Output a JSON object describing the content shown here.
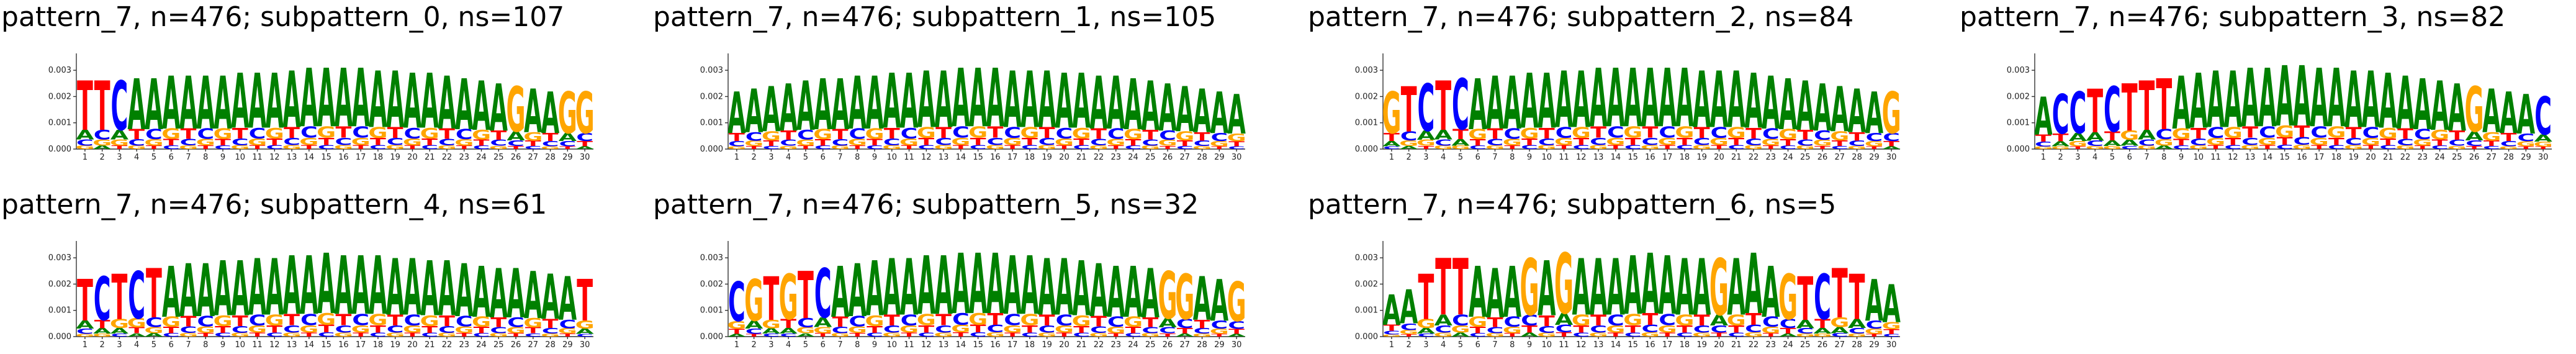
{
  "colors": {
    "A": "#008000",
    "C": "#0000ff",
    "G": "#ffa500",
    "T": "#ff0000"
  },
  "chart_data": [
    {
      "type": "sequence-logo",
      "title": "pattern_7, n=476; subpattern_0, ns=107",
      "yticks": [
        "0.000",
        "0.001",
        "0.002",
        "0.003"
      ],
      "ylim": [
        0,
        0.0035
      ],
      "positions": [
        1,
        2,
        3,
        4,
        5,
        6,
        7,
        8,
        9,
        10,
        11,
        12,
        13,
        14,
        15,
        16,
        17,
        18,
        19,
        20,
        21,
        22,
        23,
        24,
        25,
        26,
        27,
        28,
        29,
        30
      ],
      "consensus": "TTCAAAAAAAAAAAAAAAAAAAAAAGAAGG",
      "heights": [
        0.0026,
        0.0026,
        0.0026,
        0.0027,
        0.0027,
        0.0028,
        0.0028,
        0.0028,
        0.0028,
        0.0029,
        0.0029,
        0.0029,
        0.003,
        0.0031,
        0.0031,
        0.0031,
        0.0031,
        0.003,
        0.003,
        0.0029,
        0.0029,
        0.0028,
        0.0027,
        0.0026,
        0.0025,
        0.0024,
        0.0023,
        0.0022,
        0.0022,
        0.0022
      ]
    },
    {
      "type": "sequence-logo",
      "title": "pattern_7, n=476; subpattern_1, ns=105",
      "yticks": [
        "0.000",
        "0.001",
        "0.002",
        "0.003"
      ],
      "ylim": [
        0,
        0.0035
      ],
      "positions": [
        1,
        2,
        3,
        4,
        5,
        6,
        7,
        8,
        9,
        10,
        11,
        12,
        13,
        14,
        15,
        16,
        17,
        18,
        19,
        20,
        21,
        22,
        23,
        24,
        25,
        26,
        27,
        28,
        29,
        30
      ],
      "consensus": "AAAAAAAAAAAAAAAAAAAAAAAAAAAAAA",
      "heights": [
        0.0022,
        0.0023,
        0.0024,
        0.0025,
        0.0026,
        0.0027,
        0.0027,
        0.0028,
        0.0028,
        0.0029,
        0.0029,
        0.003,
        0.003,
        0.0031,
        0.0031,
        0.0031,
        0.003,
        0.003,
        0.003,
        0.0029,
        0.0029,
        0.0028,
        0.0028,
        0.0027,
        0.0026,
        0.0025,
        0.0024,
        0.0023,
        0.0022,
        0.0021
      ]
    },
    {
      "type": "sequence-logo",
      "title": "pattern_7, n=476; subpattern_2, ns=84",
      "yticks": [
        "0.000",
        "0.001",
        "0.002",
        "0.003"
      ],
      "ylim": [
        0,
        0.0035
      ],
      "positions": [
        1,
        2,
        3,
        4,
        5,
        6,
        7,
        8,
        9,
        10,
        11,
        12,
        13,
        14,
        15,
        16,
        17,
        18,
        19,
        20,
        21,
        22,
        23,
        24,
        25,
        26,
        27,
        28,
        29,
        30
      ],
      "consensus": "GTCTCAAAAAAAAAAAAAAAAAAAAAAAAG",
      "heights": [
        0.0022,
        0.0024,
        0.0025,
        0.0026,
        0.0027,
        0.0027,
        0.0028,
        0.0028,
        0.0029,
        0.0029,
        0.003,
        0.003,
        0.0031,
        0.0031,
        0.0031,
        0.0031,
        0.0031,
        0.0031,
        0.003,
        0.003,
        0.003,
        0.0029,
        0.0028,
        0.0027,
        0.0026,
        0.0025,
        0.0024,
        0.0023,
        0.0022,
        0.0022
      ]
    },
    {
      "type": "sequence-logo",
      "title": "pattern_7, n=476; subpattern_3, ns=82",
      "yticks": [
        "0.000",
        "0.001",
        "0.002",
        "0.003"
      ],
      "ylim": [
        0,
        0.0035
      ],
      "positions": [
        1,
        2,
        3,
        4,
        5,
        6,
        7,
        8,
        9,
        10,
        11,
        12,
        13,
        14,
        15,
        16,
        17,
        18,
        19,
        20,
        21,
        22,
        23,
        24,
        25,
        26,
        27,
        28,
        29,
        30
      ],
      "consensus": "ACCTCTTTAAAAAAAAAAAAAAAAAGAAAC",
      "heights": [
        0.002,
        0.0021,
        0.0022,
        0.0023,
        0.0024,
        0.0025,
        0.0026,
        0.0027,
        0.0028,
        0.0029,
        0.003,
        0.003,
        0.0031,
        0.0031,
        0.0032,
        0.0032,
        0.0031,
        0.0031,
        0.003,
        0.003,
        0.0029,
        0.0028,
        0.0027,
        0.0026,
        0.0025,
        0.0024,
        0.0023,
        0.0022,
        0.0021,
        0.002
      ]
    },
    {
      "type": "sequence-logo",
      "title": "pattern_7, n=476; subpattern_4, ns=61",
      "yticks": [
        "0.000",
        "0.001",
        "0.002",
        "0.003"
      ],
      "ylim": [
        0,
        0.0035
      ],
      "positions": [
        1,
        2,
        3,
        4,
        5,
        6,
        7,
        8,
        9,
        10,
        11,
        12,
        13,
        14,
        15,
        16,
        17,
        18,
        19,
        20,
        21,
        22,
        23,
        24,
        25,
        26,
        27,
        28,
        29,
        30
      ],
      "consensus": "TCTCTAAAAAAAAAAAAAAAAAAAAAAAAT",
      "heights": [
        0.0022,
        0.0023,
        0.0024,
        0.0025,
        0.0026,
        0.0027,
        0.0028,
        0.0028,
        0.0029,
        0.0029,
        0.003,
        0.003,
        0.0031,
        0.0031,
        0.0032,
        0.0031,
        0.0031,
        0.0031,
        0.003,
        0.003,
        0.0029,
        0.0029,
        0.0028,
        0.0027,
        0.0026,
        0.0026,
        0.0025,
        0.0024,
        0.0023,
        0.0022
      ]
    },
    {
      "type": "sequence-logo",
      "title": "pattern_7, n=476; subpattern_5, ns=32",
      "yticks": [
        "0.000",
        "0.001",
        "0.002",
        "0.003"
      ],
      "ylim": [
        0,
        0.0035
      ],
      "positions": [
        1,
        2,
        3,
        4,
        5,
        6,
        7,
        8,
        9,
        10,
        11,
        12,
        13,
        14,
        15,
        16,
        17,
        18,
        19,
        20,
        21,
        22,
        23,
        24,
        25,
        26,
        27,
        28,
        29,
        30
      ],
      "consensus": "CGTGTCAAAAAAAAAAAAAAAAAAAGGAAG",
      "heights": [
        0.0021,
        0.0022,
        0.0023,
        0.0024,
        0.0025,
        0.0026,
        0.0027,
        0.0028,
        0.0029,
        0.003,
        0.003,
        0.0031,
        0.0031,
        0.0032,
        0.0032,
        0.0032,
        0.0031,
        0.0031,
        0.003,
        0.003,
        0.0029,
        0.0028,
        0.0027,
        0.0027,
        0.0026,
        0.0025,
        0.0024,
        0.0023,
        0.0022,
        0.0021
      ]
    },
    {
      "type": "sequence-logo",
      "title": "pattern_7, n=476; subpattern_6, ns=5",
      "yticks": [
        "0.000",
        "0.001",
        "0.002",
        "0.003"
      ],
      "ylim": [
        0,
        0.0035
      ],
      "positions": [
        1,
        2,
        3,
        4,
        5,
        6,
        7,
        8,
        9,
        10,
        11,
        12,
        13,
        14,
        15,
        16,
        17,
        18,
        19,
        20,
        21,
        22,
        23,
        24,
        25,
        26,
        27,
        28,
        29,
        30
      ],
      "consensus": "AATTTAAAGAGAAAAAAAAGAAAGTCTTAA",
      "heights": [
        0.0016,
        0.0018,
        0.0024,
        0.003,
        0.003,
        0.0027,
        0.0026,
        0.0027,
        0.003,
        0.0029,
        0.0032,
        0.003,
        0.003,
        0.003,
        0.0031,
        0.0032,
        0.0031,
        0.003,
        0.003,
        0.003,
        0.003,
        0.0032,
        0.0027,
        0.0024,
        0.0023,
        0.0024,
        0.0026,
        0.0024,
        0.0022,
        0.002
      ]
    }
  ]
}
